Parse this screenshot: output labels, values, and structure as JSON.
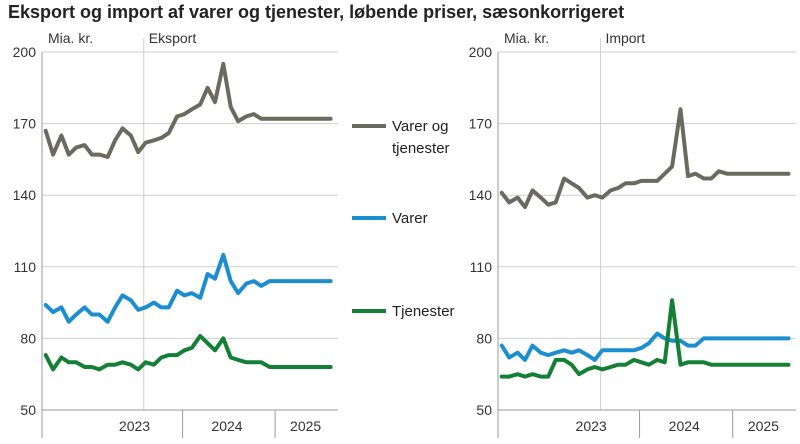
{
  "title": "Eksport og import af varer og tjenester, løbende priser, sæsonkorrigeret",
  "colors": {
    "total": "#6b6a5e",
    "goods": "#1b8ed0",
    "services": "#138035",
    "grid": "#cfcfcf",
    "frame": "#9a9a9a"
  },
  "legend": [
    {
      "key": "total",
      "label_lines": [
        "Varer og",
        "tjenester"
      ]
    },
    {
      "key": "goods",
      "label_lines": [
        "Varer"
      ]
    },
    {
      "key": "services",
      "label_lines": [
        "Tjenester"
      ]
    }
  ],
  "chart_data": [
    {
      "type": "line",
      "panel": "Eksport",
      "unit_label": "Mia. kr.",
      "ylim": [
        50,
        200
      ],
      "yticks": [
        50,
        80,
        110,
        140,
        170,
        200
      ],
      "x_years": [
        "2023",
        "2024",
        "2025"
      ],
      "x_range": [
        2022.5,
        2025.7
      ],
      "series": [
        {
          "name": "Varer og tjenester",
          "key": "total",
          "x": [
            2022.54,
            2022.62,
            2022.71,
            2022.79,
            2022.87,
            2022.96,
            2023.04,
            2023.12,
            2023.21,
            2023.29,
            2023.37,
            2023.46,
            2023.54,
            2023.62,
            2023.71,
            2023.79,
            2023.87,
            2023.96,
            2024.04,
            2024.12,
            2024.21,
            2024.29,
            2024.37,
            2024.46,
            2024.54,
            2024.62,
            2024.71,
            2024.79,
            2024.87,
            2024.96,
            2025.04,
            2025.12,
            2025.21,
            2025.29,
            2025.37,
            2025.46,
            2025.54,
            2025.62
          ],
          "values": [
            167,
            157,
            165,
            157,
            160,
            161,
            157,
            157,
            156,
            163,
            168,
            165,
            158,
            162,
            163,
            164,
            166,
            173,
            174,
            176,
            178,
            185,
            179,
            195,
            177,
            171,
            173,
            174,
            172,
            172,
            172,
            172,
            172,
            172,
            172,
            172,
            172,
            172
          ]
        },
        {
          "name": "Varer",
          "key": "goods",
          "x": [
            2022.54,
            2022.62,
            2022.71,
            2022.79,
            2022.87,
            2022.96,
            2023.04,
            2023.12,
            2023.21,
            2023.29,
            2023.37,
            2023.46,
            2023.54,
            2023.62,
            2023.71,
            2023.79,
            2023.87,
            2023.96,
            2024.04,
            2024.12,
            2024.21,
            2024.29,
            2024.37,
            2024.46,
            2024.54,
            2024.62,
            2024.71,
            2024.79,
            2024.87,
            2024.96,
            2025.04,
            2025.12,
            2025.21,
            2025.29,
            2025.37,
            2025.46,
            2025.54,
            2025.62
          ],
          "values": [
            94,
            91,
            93,
            87,
            90,
            93,
            90,
            90,
            87,
            93,
            98,
            96,
            92,
            93,
            95,
            93,
            93,
            100,
            98,
            99,
            97,
            107,
            105,
            115,
            104,
            99,
            103,
            104,
            102,
            104,
            104,
            104,
            104,
            104,
            104,
            104,
            104,
            104
          ]
        },
        {
          "name": "Tjenester",
          "key": "services",
          "x": [
            2022.54,
            2022.62,
            2022.71,
            2022.79,
            2022.87,
            2022.96,
            2023.04,
            2023.12,
            2023.21,
            2023.29,
            2023.37,
            2023.46,
            2023.54,
            2023.62,
            2023.71,
            2023.79,
            2023.87,
            2023.96,
            2024.04,
            2024.12,
            2024.21,
            2024.29,
            2024.37,
            2024.46,
            2024.54,
            2024.62,
            2024.71,
            2024.79,
            2024.87,
            2024.96,
            2025.04,
            2025.12,
            2025.21,
            2025.29,
            2025.37,
            2025.46,
            2025.54,
            2025.62
          ],
          "values": [
            73,
            67,
            72,
            70,
            70,
            68,
            68,
            67,
            69,
            69,
            70,
            69,
            67,
            70,
            69,
            72,
            73,
            73,
            75,
            76,
            81,
            78,
            75,
            80,
            72,
            71,
            70,
            70,
            70,
            68,
            68,
            68,
            68,
            68,
            68,
            68,
            68,
            68
          ]
        }
      ]
    },
    {
      "type": "line",
      "panel": "Import",
      "unit_label": "Mia. kr.",
      "ylim": [
        50,
        200
      ],
      "yticks": [
        50,
        80,
        110,
        140,
        170,
        200
      ],
      "x_years": [
        "2023",
        "2024",
        "2025"
      ],
      "x_range": [
        2022.5,
        2025.7
      ],
      "series": [
        {
          "name": "Varer og tjenester",
          "key": "total",
          "x": [
            2022.54,
            2022.62,
            2022.71,
            2022.79,
            2022.87,
            2022.96,
            2023.04,
            2023.12,
            2023.21,
            2023.29,
            2023.37,
            2023.46,
            2023.54,
            2023.62,
            2023.71,
            2023.79,
            2023.87,
            2023.96,
            2024.04,
            2024.12,
            2024.21,
            2024.29,
            2024.37,
            2024.46,
            2024.54,
            2024.62,
            2024.71,
            2024.79,
            2024.87,
            2024.96,
            2025.04,
            2025.12,
            2025.21,
            2025.29,
            2025.37,
            2025.46,
            2025.54,
            2025.62
          ],
          "values": [
            141,
            137,
            139,
            135,
            142,
            139,
            136,
            137,
            147,
            145,
            143,
            139,
            140,
            139,
            142,
            143,
            145,
            145,
            146,
            146,
            146,
            149,
            152,
            176,
            148,
            149,
            147,
            147,
            150,
            149,
            149,
            149,
            149,
            149,
            149,
            149,
            149,
            149
          ]
        },
        {
          "name": "Varer",
          "key": "goods",
          "x": [
            2022.54,
            2022.62,
            2022.71,
            2022.79,
            2022.87,
            2022.96,
            2023.04,
            2023.12,
            2023.21,
            2023.29,
            2023.37,
            2023.46,
            2023.54,
            2023.62,
            2023.71,
            2023.79,
            2023.87,
            2023.96,
            2024.04,
            2024.12,
            2024.21,
            2024.29,
            2024.37,
            2024.46,
            2024.54,
            2024.62,
            2024.71,
            2024.79,
            2024.87,
            2024.96,
            2025.04,
            2025.12,
            2025.21,
            2025.29,
            2025.37,
            2025.46,
            2025.54,
            2025.62
          ],
          "values": [
            77,
            72,
            74,
            71,
            77,
            74,
            73,
            74,
            75,
            74,
            75,
            73,
            71,
            75,
            75,
            75,
            75,
            75,
            76,
            78,
            82,
            80,
            79,
            79,
            77,
            77,
            80,
            80,
            80,
            80,
            80,
            80,
            80,
            80,
            80,
            80,
            80,
            80
          ]
        },
        {
          "name": "Tjenester",
          "key": "services",
          "x": [
            2022.54,
            2022.62,
            2022.71,
            2022.79,
            2022.87,
            2022.96,
            2023.04,
            2023.12,
            2023.21,
            2023.29,
            2023.37,
            2023.46,
            2023.54,
            2023.62,
            2023.71,
            2023.79,
            2023.87,
            2023.96,
            2024.04,
            2024.12,
            2024.21,
            2024.29,
            2024.37,
            2024.46,
            2024.54,
            2024.62,
            2024.71,
            2024.79,
            2024.87,
            2024.96,
            2025.04,
            2025.12,
            2025.21,
            2025.29,
            2025.37,
            2025.46,
            2025.54,
            2025.62
          ],
          "values": [
            64,
            64,
            65,
            64,
            65,
            64,
            64,
            71,
            71,
            69,
            65,
            67,
            68,
            67,
            68,
            69,
            69,
            71,
            70,
            69,
            71,
            70,
            96,
            69,
            70,
            70,
            70,
            69,
            69,
            69,
            69,
            69,
            69,
            69,
            69,
            69,
            69,
            69
          ]
        }
      ]
    }
  ]
}
